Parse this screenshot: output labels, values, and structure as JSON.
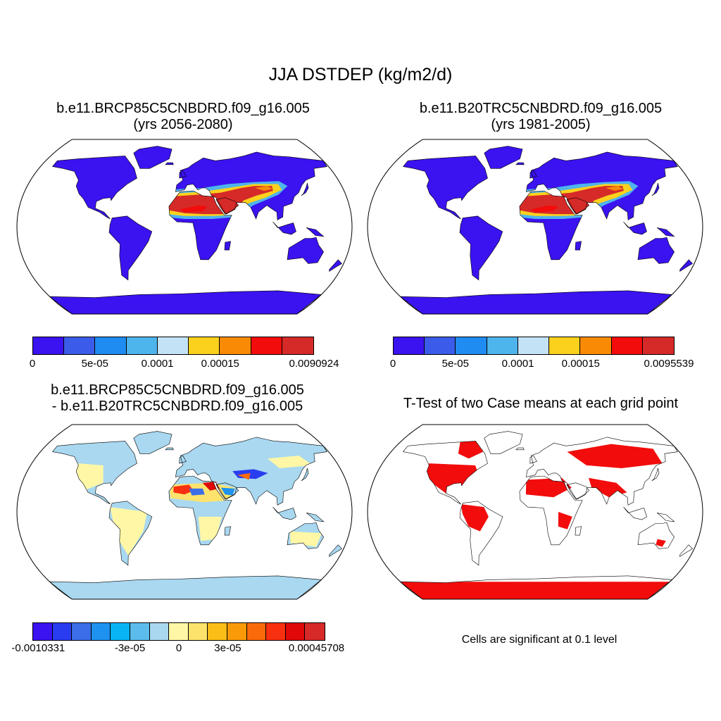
{
  "title": "JJA DSTDEP (kg/m2/d)",
  "panels": [
    {
      "title_line1": "b.e11.BRCP85C5CNBDRD.f09_g16.005",
      "title_line2": "(yrs 2056-2080)",
      "colorbar": {
        "colors": [
          "#3b12f0",
          "#3b5ce8",
          "#1e8cf0",
          "#4eb4ec",
          "#c4e2f6",
          "#fbd11d",
          "#f88a05",
          "#f20c0c",
          "#d62a28"
        ],
        "tick_labels": [
          "0",
          "5e-05",
          "0.0001",
          "0.00015",
          "0.0090924"
        ]
      }
    },
    {
      "title_line1": "b.e11.B20TRC5CNBDRD.f09_g16.005",
      "title_line2": "(yrs 1981-2005)",
      "colorbar": {
        "colors": [
          "#3b12f0",
          "#3b5ce8",
          "#1e8cf0",
          "#4eb4ec",
          "#c4e2f6",
          "#fbd11d",
          "#f88a05",
          "#f20c0c",
          "#d62a28"
        ],
        "tick_labels": [
          "0",
          "5e-05",
          "0.0001",
          "0.00015",
          "0.0095539"
        ]
      }
    },
    {
      "title_line1": "b.e11.BRCP85C5CNBDRD.f09_g16.005",
      "title_line2": "- b.e11.B20TRC5CNBDRD.f09_g16.005",
      "colorbar": {
        "colors": [
          "#3b12f0",
          "#2a3cf0",
          "#3b6ee8",
          "#1e92f0",
          "#08b4f4",
          "#5bbcec",
          "#a9d8f0",
          "#fff7a6",
          "#fde36c",
          "#fbbe16",
          "#fb9a08",
          "#fb6a0a",
          "#f8300f",
          "#e00808",
          "#d62a28"
        ],
        "tick_labels": [
          "-0.0010331",
          "-3e-05",
          "0",
          "3e-05",
          "0.00045708"
        ]
      }
    },
    {
      "title": "T-Test of two Case means at each grid point",
      "note": "Cells are significant at 0.1 level"
    }
  ]
}
